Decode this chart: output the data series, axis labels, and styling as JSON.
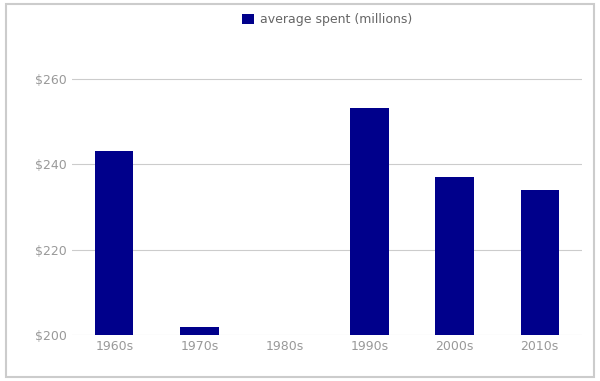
{
  "categories": [
    "1960s",
    "1970s",
    "1980s",
    "1990s",
    "2000s",
    "2010s"
  ],
  "values": [
    243,
    202,
    200,
    253,
    237,
    234
  ],
  "bar_color": "#00008B",
  "legend_label": "average spent (millions)",
  "ylim": [
    200,
    265
  ],
  "yticks": [
    200,
    220,
    240,
    260
  ],
  "ytick_labels": [
    "$200",
    "$220",
    "$240",
    "$260"
  ],
  "background_color": "#ffffff",
  "grid_color": "#cccccc",
  "tick_label_color": "#999999",
  "legend_text_color": "#666666",
  "bar_width": 0.45,
  "figure_width": 6.0,
  "figure_height": 3.81
}
